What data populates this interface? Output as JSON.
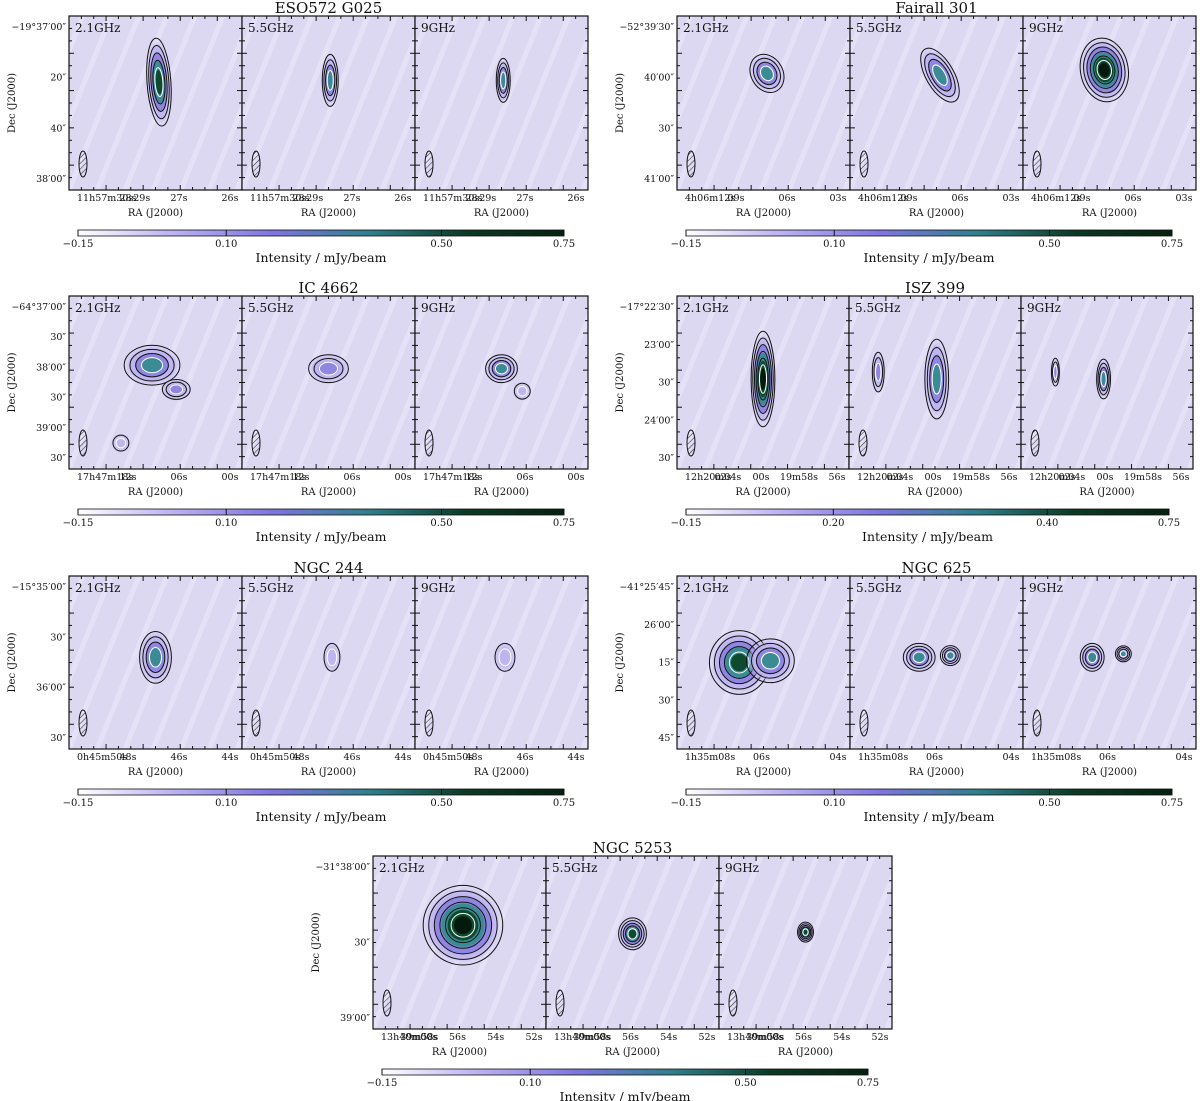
{
  "figure": {
    "x_axis_label": "RA (J2000)",
    "y_axis_label": "Dec (J2000)",
    "colorbar_label": "Intensity / mJy/beam",
    "colorbar_colors": [
      "#ffffff",
      "#b9b0f2",
      "#7f75e0",
      "#2f7f8c",
      "#0b3a24",
      "#06200f"
    ]
  },
  "chart_data": [
    {
      "type": "heatmap",
      "title": "ESO572 G025",
      "panels": [
        "2.1GHz",
        "5.5GHz",
        "9GHz"
      ],
      "ra_ticks": [
        "11h57m30s29s",
        "28s",
        "27s",
        "26s"
      ],
      "dec_ticks": [
        "−19°37′00″",
        "20″",
        "40″",
        "38′00″"
      ],
      "colorbar_ticks": [
        "−0.15",
        "0.10",
        "0.50",
        "0.75"
      ],
      "colorbar_range": [
        -0.15,
        0.75
      ],
      "xlabel": "RA (J2000)",
      "ylabel": "Dec (J2000)",
      "colorbar_label": "Intensity / mJy/beam"
    },
    {
      "type": "heatmap",
      "title": "Fairall 301",
      "panels": [
        "2.1GHz",
        "5.5GHz",
        "9GHz"
      ],
      "ra_ticks": [
        "4h06m12s",
        "09s",
        "06s",
        "03s"
      ],
      "dec_ticks": [
        "−52°39′30″",
        "40′00″",
        "30″",
        "41′00″"
      ],
      "colorbar_ticks": [
        "−0.15",
        "0.10",
        "0.50",
        "0.75"
      ],
      "colorbar_range": [
        -0.15,
        0.75
      ],
      "xlabel": "RA (J2000)",
      "ylabel": "Dec (J2000)",
      "colorbar_label": "Intensity / mJy/beam"
    },
    {
      "type": "heatmap",
      "title": "IC 4662",
      "panels": [
        "2.1GHz",
        "5.5GHz",
        "9GHz"
      ],
      "ra_ticks": [
        "17h47m18s",
        "12s",
        "06s",
        "00s"
      ],
      "dec_ticks": [
        "−64°37′00″",
        "30″",
        "38′00″",
        "30″",
        "39′00″",
        "30″"
      ],
      "colorbar_ticks": [
        "−0.15",
        "0.10",
        "0.50",
        "0.75"
      ],
      "colorbar_range": [
        -0.15,
        0.75
      ],
      "xlabel": "RA (J2000)",
      "ylabel": "Dec (J2000)",
      "colorbar_label": "Intensity / mJy/beam"
    },
    {
      "type": "heatmap",
      "title": "ISZ 399",
      "panels": [
        "2.1GHz",
        "5.5GHz",
        "9GHz"
      ],
      "ra_ticks": [
        "12h20m04s",
        "02s",
        "00s",
        "19m58s",
        "56s"
      ],
      "dec_ticks": [
        "−17°22′30″",
        "23′00″",
        "30″",
        "24′00″",
        "30″"
      ],
      "colorbar_ticks": [
        "−0.15",
        "0.20",
        "0.40",
        "0.75"
      ],
      "colorbar_range": [
        -0.15,
        0.75
      ],
      "xlabel": "RA (J2000)",
      "ylabel": "Dec (J2000)",
      "colorbar_label": "Intensity / mJy/beam"
    },
    {
      "type": "heatmap",
      "title": "NGC 244",
      "panels": [
        "2.1GHz",
        "5.5GHz",
        "9GHz"
      ],
      "ra_ticks": [
        "0h45m50s",
        "48s",
        "46s",
        "44s"
      ],
      "dec_ticks": [
        "−15°35′00″",
        "30″",
        "36′00″",
        "30″"
      ],
      "colorbar_ticks": [
        "−0.15",
        "0.10",
        "0.50",
        "0.75"
      ],
      "colorbar_range": [
        -0.15,
        0.75
      ],
      "xlabel": "RA (J2000)",
      "ylabel": "Dec (J2000)",
      "colorbar_label": "Intensity / mJy/beam"
    },
    {
      "type": "heatmap",
      "title": "NGC 625",
      "panels": [
        "2.1GHz",
        "5.5GHz",
        "9GHz"
      ],
      "ra_ticks": [
        "1h35m08s",
        "06s",
        "04s"
      ],
      "dec_ticks": [
        "−41°25′45″",
        "26′00″",
        "15″",
        "30″",
        "45″"
      ],
      "colorbar_ticks": [
        "−0.15",
        "0.10",
        "0.50",
        "0.75"
      ],
      "colorbar_range": [
        -0.15,
        0.75
      ],
      "xlabel": "RA (J2000)",
      "ylabel": "Dec (J2000)",
      "colorbar_label": "Intensity / mJy/beam"
    },
    {
      "type": "heatmap",
      "title": "NGC 5253",
      "panels": [
        "2.1GHz",
        "5.5GHz",
        "9GHz"
      ],
      "ra_ticks": [
        "13h40m00s",
        "39m58s",
        "56s",
        "54s",
        "52s"
      ],
      "dec_ticks": [
        "−31°38′00″",
        "30″",
        "39′00″"
      ],
      "colorbar_ticks": [
        "−0.15",
        "0.10",
        "0.50",
        "0.75"
      ],
      "colorbar_range": [
        -0.15,
        0.75
      ],
      "xlabel": "RA (J2000)",
      "ylabel": "Dec (J2000)",
      "colorbar_label": "Intensity / mJy/beam"
    }
  ]
}
